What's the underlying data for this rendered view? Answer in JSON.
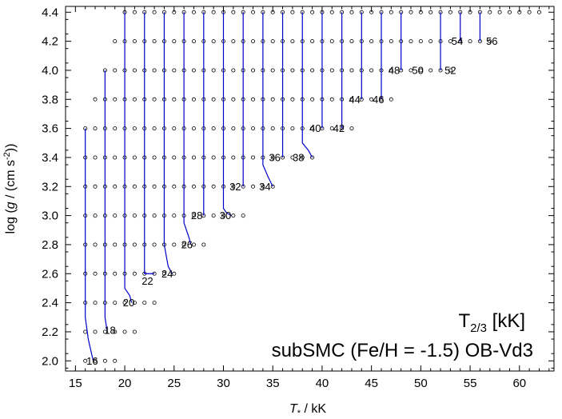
{
  "chart_data": {
    "type": "scatter",
    "xlabel": "T* / kK",
    "ylabel": "log (g / (cm s-2))",
    "xlim": [
      14,
      63.5
    ],
    "ylim": [
      1.93,
      4.44
    ],
    "xticks": [
      "15",
      "20",
      "25",
      "30",
      "35",
      "40",
      "45",
      "50",
      "55",
      "60"
    ],
    "yticks": [
      "2.0",
      "2.2",
      "2.4",
      "2.6",
      "2.8",
      "3.0",
      "3.2",
      "3.4",
      "3.6",
      "3.8",
      "4.0",
      "4.2",
      "4.4"
    ],
    "title_line1": "T2/3  [kK]",
    "title_line2": "subSMC (Fe/H = -1.5) OB-Vd3",
    "grid_rows": [
      {
        "logg": 4.4,
        "tmin": 20,
        "tmax": 62
      },
      {
        "logg": 4.2,
        "tmin": 19,
        "tmax": 57
      },
      {
        "logg": 4.0,
        "tmin": 18,
        "tmax": 53
      },
      {
        "logg": 3.8,
        "tmin": 17,
        "tmax": 47
      },
      {
        "logg": 3.6,
        "tmin": 16,
        "tmax": 43
      },
      {
        "logg": 3.4,
        "tmin": 16,
        "tmax": 39
      },
      {
        "logg": 3.2,
        "tmin": 16,
        "tmax": 35
      },
      {
        "logg": 3.0,
        "tmin": 16,
        "tmax": 32
      },
      {
        "logg": 2.8,
        "tmin": 16,
        "tmax": 28
      },
      {
        "logg": 2.6,
        "tmin": 16,
        "tmax": 25
      },
      {
        "logg": 2.4,
        "tmin": 16,
        "tmax": 23
      },
      {
        "logg": 2.2,
        "tmin": 16,
        "tmax": 21
      },
      {
        "logg": 2.0,
        "tmin": 16,
        "tmax": 19
      }
    ],
    "contours": [
      {
        "label": "16",
        "points": [
          [
            16.0,
            3.6
          ],
          [
            16.0,
            2.3
          ],
          [
            16.3,
            2.15
          ],
          [
            16.8,
            2.0
          ]
        ],
        "label_pos": [
          16.7,
          2.0
        ]
      },
      {
        "label": "18",
        "points": [
          [
            18.0,
            4.0
          ],
          [
            18.0,
            2.3
          ],
          [
            18.2,
            2.21
          ]
        ],
        "label_pos": [
          18.5,
          2.21
        ]
      },
      {
        "label": "20",
        "points": [
          [
            20.0,
            4.4
          ],
          [
            20.0,
            2.5
          ],
          [
            20.5,
            2.45
          ],
          [
            20.7,
            2.4
          ]
        ],
        "label_pos": [
          20.4,
          2.4
        ]
      },
      {
        "label": "22",
        "points": [
          [
            22.0,
            4.4
          ],
          [
            22.0,
            2.6
          ],
          [
            23.0,
            2.6
          ]
        ],
        "label_pos": [
          22.3,
          2.55
        ]
      },
      {
        "label": "24",
        "points": [
          [
            24.0,
            4.4
          ],
          [
            24.0,
            2.8
          ],
          [
            24.4,
            2.65
          ],
          [
            24.8,
            2.6
          ]
        ],
        "label_pos": [
          24.3,
          2.6
        ]
      },
      {
        "label": "26",
        "points": [
          [
            26.0,
            4.4
          ],
          [
            26.0,
            2.95
          ],
          [
            26.5,
            2.85
          ],
          [
            26.7,
            2.8
          ]
        ],
        "label_pos": [
          26.3,
          2.8
        ]
      },
      {
        "label": "28",
        "points": [
          [
            28.0,
            4.4
          ],
          [
            28.0,
            3.0
          ]
        ],
        "label_pos": [
          27.3,
          3.0
        ]
      },
      {
        "label": "30",
        "points": [
          [
            30.0,
            4.4
          ],
          [
            30.0,
            3.05
          ],
          [
            30.3,
            3.02
          ],
          [
            30.8,
            3.0
          ]
        ],
        "label_pos": [
          30.2,
          3.0
        ]
      },
      {
        "label": "32",
        "points": [
          [
            32.0,
            4.4
          ],
          [
            32.0,
            3.2
          ]
        ],
        "label_pos": [
          31.2,
          3.2
        ]
      },
      {
        "label": "34",
        "points": [
          [
            34.0,
            4.4
          ],
          [
            34.0,
            3.35
          ],
          [
            34.5,
            3.27
          ],
          [
            35.0,
            3.2
          ]
        ],
        "label_pos": [
          34.2,
          3.2
        ]
      },
      {
        "label": "36",
        "points": [
          [
            36.0,
            4.4
          ],
          [
            36.0,
            3.4
          ]
        ],
        "label_pos": [
          35.2,
          3.4
        ]
      },
      {
        "label": "38",
        "points": [
          [
            38.0,
            4.4
          ],
          [
            38.0,
            3.5
          ],
          [
            38.6,
            3.45
          ],
          [
            39.0,
            3.4
          ]
        ],
        "label_pos": [
          37.6,
          3.4
        ]
      },
      {
        "label": "40",
        "points": [
          [
            40.0,
            4.4
          ],
          [
            40.0,
            3.6
          ]
        ],
        "label_pos": [
          39.3,
          3.6
        ]
      },
      {
        "label": "42",
        "points": [
          [
            42.0,
            4.4
          ],
          [
            42.0,
            3.6
          ]
        ],
        "label_pos": [
          41.7,
          3.6
        ]
      },
      {
        "label": "44",
        "points": [
          [
            44.0,
            4.4
          ],
          [
            44.0,
            3.8
          ]
        ],
        "label_pos": [
          43.3,
          3.8
        ]
      },
      {
        "label": "46",
        "points": [
          [
            46.0,
            4.4
          ],
          [
            46.0,
            3.8
          ]
        ],
        "label_pos": [
          45.7,
          3.8
        ]
      },
      {
        "label": "48",
        "points": [
          [
            48.0,
            4.4
          ],
          [
            48.0,
            4.0
          ]
        ],
        "label_pos": [
          47.3,
          4.0
        ]
      },
      {
        "label": "50",
        "points": [],
        "label_pos": [
          49.7,
          4.0
        ]
      },
      {
        "label": "52",
        "points": [
          [
            52.0,
            4.4
          ],
          [
            52.0,
            4.0
          ]
        ],
        "label_pos": [
          53.0,
          4.0
        ]
      },
      {
        "label": "54",
        "points": [
          [
            54.0,
            4.4
          ],
          [
            54.0,
            4.2
          ]
        ],
        "label_pos": [
          53.7,
          4.2
        ]
      },
      {
        "label": "56",
        "points": [
          [
            56.0,
            4.4
          ],
          [
            56.0,
            4.2
          ]
        ],
        "label_pos": [
          57.2,
          4.2
        ]
      }
    ]
  },
  "colors": {
    "contour": "#0000cc",
    "marker": "#000000",
    "axis": "#000000"
  }
}
